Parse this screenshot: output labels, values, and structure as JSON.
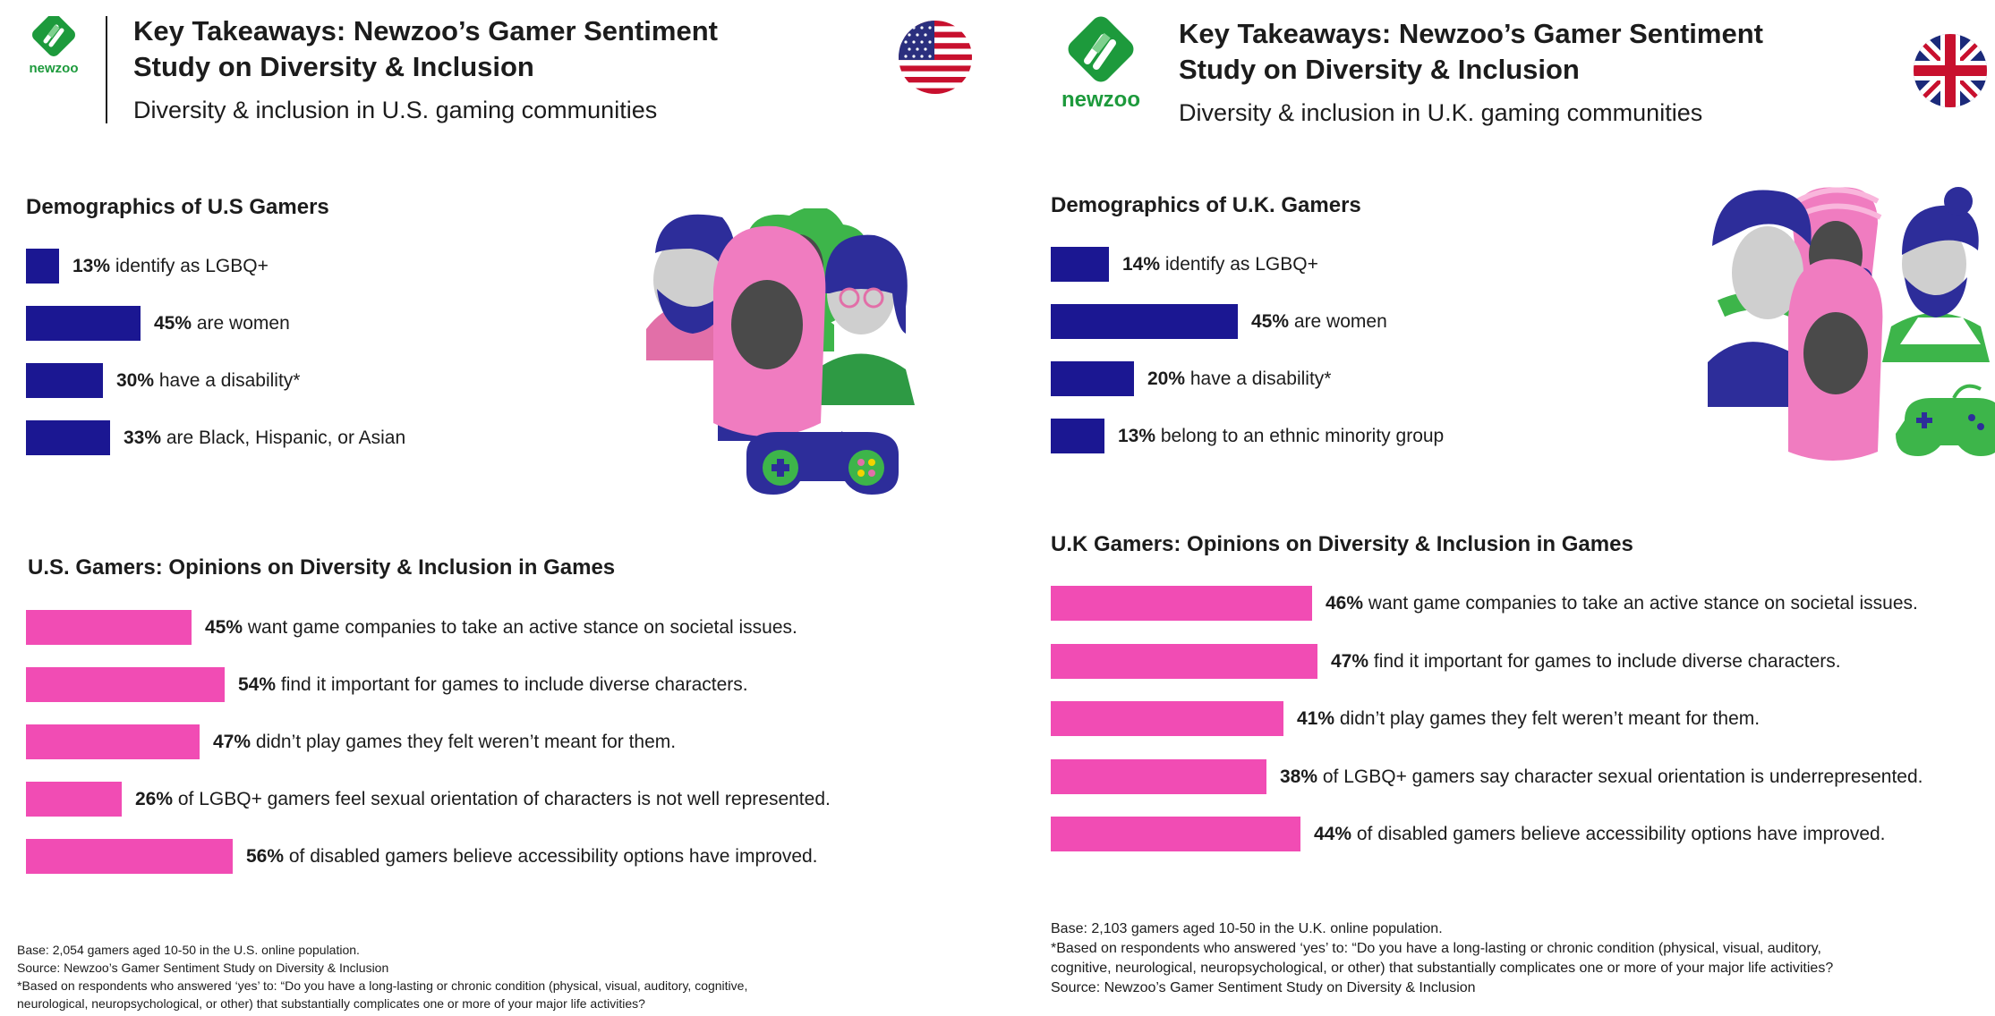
{
  "colors": {
    "navy_bar": "#1b1792",
    "pink_bar": "#f14cb4",
    "brand_green": "#1d9a3c",
    "text": "#1c1c1c"
  },
  "us": {
    "logo_text": "newzoo",
    "title_line1": "Key Takeaways: Newzoo’s Gamer Sentiment",
    "title_line2": "Study on Diversity & Inclusion",
    "subtitle": "Diversity & inclusion in U.S. gaming communities",
    "flag_icon": "us-flag-icon",
    "demographics_title": "Demographics of U.S Gamers",
    "opinions_title": "U.S. Gamers: Opinions on Diversity & Inclusion in Games",
    "footer": [
      "Base: 2,054 gamers aged 10-50 in the U.S. online population.",
      "Source: Newzoo’s Gamer Sentiment Study on Diversity & Inclusion",
      "*Based on respondents who answered ‘yes’ to: “Do you have a long-lasting or chronic condition (physical, visual, auditory, cognitive,",
      "neurological, neuropsychological, or other) that substantially complicates one or more of your major life activities?"
    ]
  },
  "uk": {
    "logo_text": "newzoo",
    "title_line1": "Key Takeaways: Newzoo’s Gamer Sentiment",
    "title_line2": "Study on Diversity & Inclusion",
    "subtitle": "Diversity & inclusion in U.K. gaming communities",
    "flag_icon": "uk-flag-icon",
    "demographics_title": "Demographics of U.K. Gamers",
    "opinions_title": "U.K Gamers: Opinions on Diversity & Inclusion in Games",
    "footer": [
      "Base: 2,103 gamers aged 10-50 in the U.K. online population.",
      "*Based on respondents who answered ‘yes’ to: “Do you have a long-lasting or chronic condition (physical, visual, auditory,",
      "cognitive, neurological, neuropsychological, or other) that substantially complicates one or more of your major life activities?",
      "Source: Newzoo’s Gamer Sentiment Study on Diversity & Inclusion"
    ]
  },
  "chart_data": [
    {
      "type": "bar",
      "title": "Demographics of U.S Gamers",
      "categories": [
        "identify as LGBQ+",
        "are women",
        "have a disability*",
        "are Black, Hispanic, or Asian"
      ],
      "values": [
        13,
        45,
        30,
        33
      ],
      "value_labels": [
        "13%",
        "45%",
        "30%",
        "33%"
      ]
    },
    {
      "type": "bar",
      "title": "U.S. Gamers: Opinions on Diversity & Inclusion in Games",
      "categories": [
        "want game companies to take an active stance on societal issues.",
        "find it important for games to include diverse characters.",
        "didn’t play games they felt weren’t meant for them.",
        "of LGBQ+ gamers feel sexual orientation of characters is not well represented.",
        "of disabled gamers believe accessibility options have improved."
      ],
      "values": [
        45,
        54,
        47,
        26,
        56
      ],
      "value_labels": [
        "45%",
        "54%",
        "47%",
        "26%",
        "56%"
      ]
    },
    {
      "type": "bar",
      "title": "Demographics of U.K. Gamers",
      "categories": [
        "identify as LGBQ+",
        "are women",
        "have a disability*",
        "belong to an ethnic minority group"
      ],
      "values": [
        14,
        45,
        20,
        13
      ],
      "value_labels": [
        "14%",
        "45%",
        "20%",
        "13%"
      ]
    },
    {
      "type": "bar",
      "title": "U.K Gamers: Opinions on Diversity & Inclusion in Games",
      "categories": [
        "want game companies to take an active stance on societal issues.",
        "find it important for games to include diverse characters.",
        "didn’t play games they felt weren’t meant for them.",
        "of LGBQ+ gamers say character sexual orientation is underrepresented.",
        "of disabled gamers believe accessibility options have improved."
      ],
      "values": [
        46,
        47,
        41,
        38,
        44
      ],
      "value_labels": [
        "46%",
        "47%",
        "41%",
        "38%",
        "44%"
      ]
    }
  ]
}
